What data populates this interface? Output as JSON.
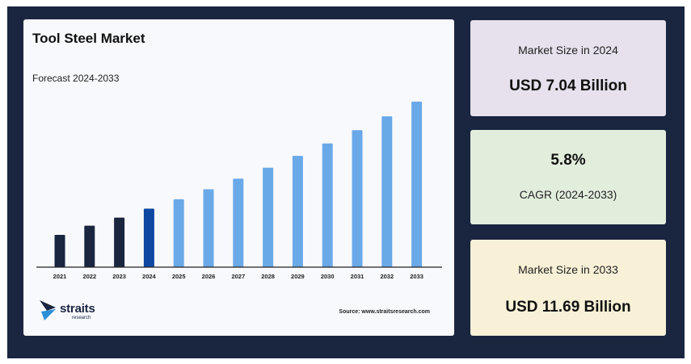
{
  "colors": {
    "frame": "#1a2540",
    "historical_bar": "#1a2540",
    "current_bar": "#0d47a1",
    "forecast_bar": "#6aa9e8",
    "size_2024_card": "#e6e1ec",
    "cagr_card": "#e2eedc",
    "size_2033_card": "#f8f1d7"
  },
  "chart_data": {
    "type": "bar",
    "title": "Tool Steel Market",
    "subtitle": "Forecast 2024-2033",
    "categories": [
      "2021",
      "2022",
      "2023",
      "2024",
      "2025",
      "2026",
      "2027",
      "2028",
      "2029",
      "2030",
      "2031",
      "2032",
      "2033"
    ],
    "values": [
      5.9,
      6.3,
      6.65,
      7.04,
      7.45,
      7.88,
      8.34,
      8.82,
      9.33,
      9.87,
      10.45,
      11.05,
      11.69
    ],
    "bar_roles": [
      "historical",
      "historical",
      "historical",
      "current",
      "forecast",
      "forecast",
      "forecast",
      "forecast",
      "forecast",
      "forecast",
      "forecast",
      "forecast",
      "forecast"
    ],
    "ylim": [
      4.5,
      12.0
    ],
    "grid": false,
    "legend": "none"
  },
  "logo": {
    "name": "straits",
    "sub": "research"
  },
  "source": "Source: www.straitsresearch.com",
  "stats": {
    "size_2024": {
      "label": "Market Size in 2024",
      "value": "USD 7.04 Billion"
    },
    "cagr": {
      "value": "5.8%",
      "label": "CAGR (2024-2033)"
    },
    "size_2033": {
      "label": "Market Size in 2033",
      "value": "USD 11.69 Billion"
    }
  }
}
